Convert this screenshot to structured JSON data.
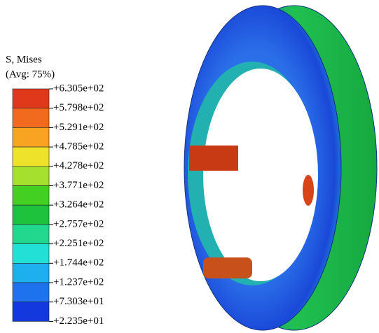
{
  "legend": {
    "title": "S, Mises",
    "subtitle": "(Avg: 75%)",
    "labels": [
      "+6.305e+02",
      "+5.798e+02",
      "+5.291e+02",
      "+4.785e+02",
      "+4.278e+02",
      "+3.771e+02",
      "+3.264e+02",
      "+2.757e+02",
      "+2.251e+02",
      "+1.744e+02",
      "+1.237e+02",
      "+7.303e+01",
      "+2.235e+01"
    ],
    "colors": [
      "#e0381a",
      "#f26a1e",
      "#f8a422",
      "#eee22a",
      "#a6e02e",
      "#44d022",
      "#1ec23c",
      "#22d88e",
      "#22e0d6",
      "#1eb0ee",
      "#1e72ee",
      "#1238de"
    ]
  }
}
